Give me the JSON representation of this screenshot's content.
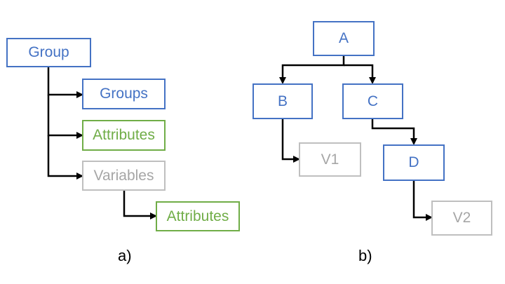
{
  "panel_a": {
    "caption": "a)",
    "nodes": {
      "group": "Group",
      "groups": "Groups",
      "attributes_1": "Attributes",
      "variables": "Variables",
      "attributes_2": "Attributes"
    }
  },
  "panel_b": {
    "caption": "b)",
    "nodes": {
      "a": "A",
      "b": "B",
      "c": "C",
      "d": "D",
      "v1": "V1",
      "v2": "V2"
    }
  },
  "colors": {
    "group_node": "#4472c4",
    "attribute_node": "#70ad47",
    "variable_node": "#bfbfbf",
    "connector": "#000000"
  }
}
